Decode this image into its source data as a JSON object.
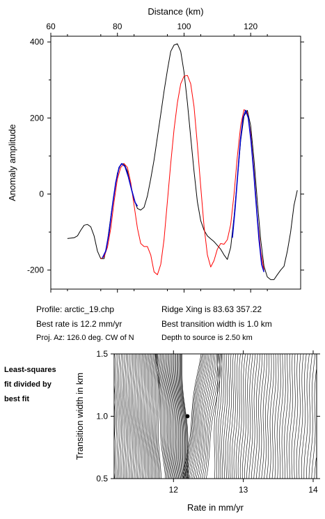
{
  "chart_data": [
    {
      "type": "line",
      "xlabel": "Distance (km)",
      "ylabel": "Anomaly amplitude",
      "xlim": [
        60,
        135
      ],
      "ylim": [
        -250,
        415
      ],
      "xticks": [
        60,
        80,
        100,
        120
      ],
      "yticks": [
        -200,
        0,
        200,
        400
      ],
      "grid": false,
      "series": [
        {
          "color": "#000000",
          "points": [
            [
              65,
              -117
            ],
            [
              67,
              -115
            ],
            [
              68,
              -110
            ],
            [
              69,
              -95
            ],
            [
              70,
              -82
            ],
            [
              71,
              -80
            ],
            [
              72,
              -86
            ],
            [
              73,
              -110
            ],
            [
              74,
              -150
            ],
            [
              75,
              -170
            ],
            [
              76,
              -170
            ],
            [
              77,
              -125
            ],
            [
              78,
              -60
            ],
            [
              79,
              0
            ],
            [
              80,
              55
            ],
            [
              81,
              78
            ],
            [
              82,
              80
            ],
            [
              83,
              60
            ],
            [
              84,
              20
            ],
            [
              85,
              -15
            ],
            [
              86,
              -38
            ],
            [
              87,
              -42
            ],
            [
              88,
              -35
            ],
            [
              89,
              -5
            ],
            [
              90,
              40
            ],
            [
              91,
              90
            ],
            [
              92,
              150
            ],
            [
              93,
              210
            ],
            [
              94,
              270
            ],
            [
              95,
              325
            ],
            [
              96,
              375
            ],
            [
              97,
              392
            ],
            [
              98,
              395
            ],
            [
              99,
              375
            ],
            [
              100,
              320
            ],
            [
              101,
              240
            ],
            [
              102,
              150
            ],
            [
              103,
              60
            ],
            [
              104,
              -20
            ],
            [
              105,
              -70
            ],
            [
              106,
              -95
            ],
            [
              107,
              -110
            ],
            [
              108,
              -118
            ],
            [
              109,
              -125
            ],
            [
              110,
              -135
            ],
            [
              111,
              -145
            ],
            [
              112,
              -160
            ],
            [
              113,
              -172
            ],
            [
              114,
              -140
            ],
            [
              115,
              -60
            ],
            [
              116,
              40
            ],
            [
              117,
              140
            ],
            [
              118,
              205
            ],
            [
              119,
              220
            ],
            [
              120,
              180
            ],
            [
              121,
              90
            ],
            [
              122,
              -20
            ],
            [
              123,
              -120
            ],
            [
              124,
              -190
            ],
            [
              125,
              -218
            ],
            [
              126,
              -225
            ],
            [
              127,
              -225
            ],
            [
              128,
              -212
            ],
            [
              129,
              -200
            ],
            [
              130,
              -190
            ],
            [
              131,
              -150
            ],
            [
              132,
              -100
            ],
            [
              133,
              -30
            ],
            [
              134,
              10
            ]
          ]
        },
        {
          "color": "#ff0000",
          "points": [
            [
              75,
              -170
            ],
            [
              76,
              -165
            ],
            [
              77,
              -140
            ],
            [
              78,
              -90
            ],
            [
              79,
              -20
            ],
            [
              80,
              40
            ],
            [
              81,
              70
            ],
            [
              82,
              80
            ],
            [
              83,
              70
            ],
            [
              84,
              30
            ],
            [
              85,
              -30
            ],
            [
              86,
              -90
            ],
            [
              87,
              -130
            ],
            [
              88,
              -138
            ],
            [
              89,
              -138
            ],
            [
              90,
              -160
            ],
            [
              91,
              -205
            ],
            [
              92,
              -212
            ],
            [
              93,
              -185
            ],
            [
              94,
              -120
            ],
            [
              95,
              -20
            ],
            [
              96,
              80
            ],
            [
              97,
              170
            ],
            [
              98,
              240
            ],
            [
              99,
              290
            ],
            [
              100,
              310
            ],
            [
              101,
              312
            ],
            [
              102,
              290
            ],
            [
              103,
              230
            ],
            [
              104,
              130
            ],
            [
              105,
              20
            ],
            [
              106,
              -85
            ],
            [
              107,
              -160
            ],
            [
              108,
              -192
            ],
            [
              109,
              -175
            ],
            [
              110,
              -145
            ],
            [
              111,
              -130
            ],
            [
              112,
              -132
            ],
            [
              113,
              -120
            ],
            [
              114,
              -80
            ],
            [
              115,
              0
            ],
            [
              116,
              100
            ],
            [
              117,
              180
            ],
            [
              118,
              222
            ],
            [
              119,
              215
            ],
            [
              120,
              160
            ],
            [
              121,
              60
            ],
            [
              122,
              -60
            ],
            [
              123,
              -150
            ],
            [
              124,
              -200
            ]
          ]
        },
        {
          "color": "#0000cc",
          "points": [
            [
              75.5,
              -168
            ],
            [
              76.5,
              -150
            ],
            [
              77.5,
              -100
            ],
            [
              78.5,
              -30
            ],
            [
              79.5,
              30
            ],
            [
              80.5,
              70
            ],
            [
              81.3,
              80
            ],
            [
              82.3,
              72
            ],
            [
              83.3,
              45
            ],
            [
              84.3,
              10
            ],
            [
              85.3,
              -22
            ],
            [
              86,
              -32
            ]
          ]
        },
        {
          "color": "#0000cc",
          "points": [
            [
              114.5,
              -115
            ],
            [
              115.3,
              -40
            ],
            [
              116.1,
              50
            ],
            [
              116.9,
              140
            ],
            [
              117.7,
              200
            ],
            [
              118.5,
              220
            ],
            [
              119.3,
              200
            ],
            [
              120.1,
              140
            ],
            [
              120.9,
              60
            ],
            [
              121.7,
              -30
            ],
            [
              122.5,
              -120
            ],
            [
              123.3,
              -185
            ],
            [
              124,
              -205
            ]
          ]
        }
      ]
    },
    {
      "type": "contour",
      "xlabel": "Rate in mm/yr",
      "ylabel": "Transition width in km",
      "xlim": [
        11.15,
        14.05
      ],
      "ylim": [
        0.5,
        1.5
      ],
      "xticks": [
        12,
        13,
        14
      ],
      "yticks": [
        0.5,
        1.0,
        1.5
      ],
      "best_fit": {
        "rate": 12.2,
        "width": 1.0
      },
      "note": "Least-squares fit divided by best fit"
    }
  ],
  "info": {
    "profile": "Profile: arctic_19.chp",
    "best_rate": "Best rate is 12.2 mm/yr",
    "proj_az": "Proj. Az: 126.0 deg. CW of N",
    "ridge_xing": "Ridge Xing is 83.63 357.22",
    "best_width": "Best transition width is 1.0 km",
    "depth": "Depth to source is   2.50 km"
  },
  "note_lines": [
    "Least-squares",
    "fit divided by",
    "best fit"
  ]
}
